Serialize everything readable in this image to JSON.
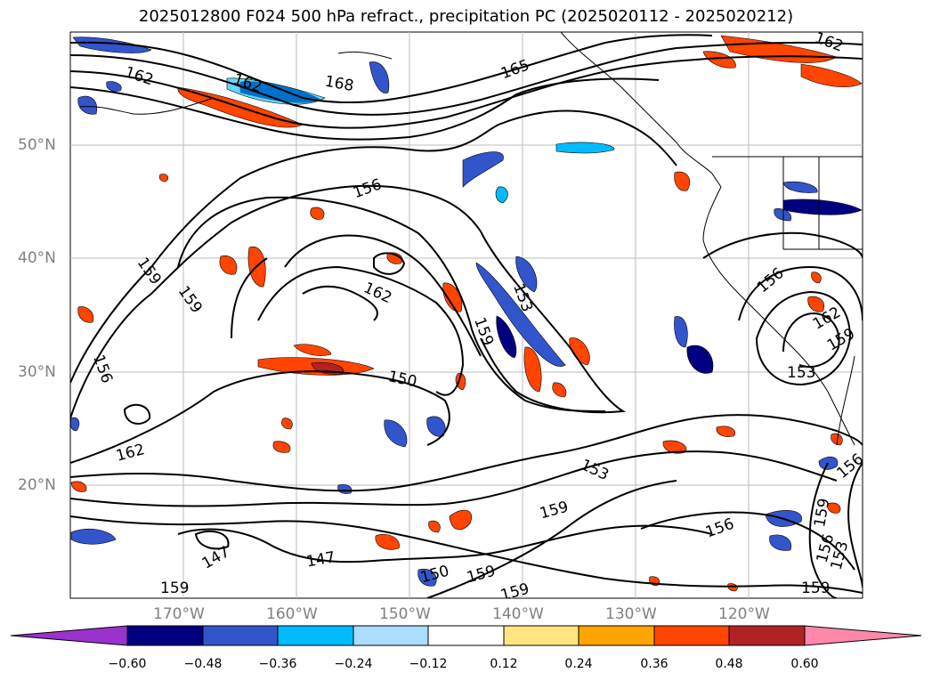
{
  "title": "2025012800 F024 500 hPa refract., precipitation PC (2025020112 - 2025020212)",
  "latitude_labels": [
    "50°N",
    "40°N",
    "30°N",
    "20°N"
  ],
  "longitude_labels": [
    "170°W",
    "160°W",
    "150°W",
    "140°W",
    "130°W",
    "120°W"
  ],
  "contour_labels": [
    "162",
    "162",
    "168",
    "165",
    "162",
    "156",
    "159",
    "159",
    "156",
    "162",
    "153",
    "159",
    "150",
    "162",
    "156",
    "162",
    "159",
    "153",
    "156",
    "153",
    "159",
    "156",
    "159",
    "147",
    "147",
    "150",
    "159",
    "159",
    "159",
    "156",
    "153",
    "159"
  ],
  "colorbar": {
    "ticks": [
      "−0.60",
      "−0.48",
      "−0.36",
      "−0.24",
      "−0.12",
      "0.12",
      "0.24",
      "0.36",
      "0.48",
      "0.60"
    ],
    "colors": [
      "#9933cc",
      "#000080",
      "#3355cc",
      "#00bbff",
      "#aaddff",
      "#ffffff",
      "#ffe680",
      "#ffa500",
      "#ff4500",
      "#b22222",
      "#ff88aa"
    ]
  },
  "colors": {
    "contour": "#000000",
    "coastline": "#000000",
    "grid": "#bbbbbb",
    "axis_label": "#808080"
  }
}
